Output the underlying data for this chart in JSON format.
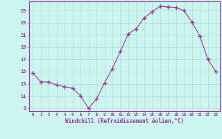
{
  "x": [
    0,
    1,
    2,
    3,
    4,
    5,
    6,
    7,
    8,
    9,
    10,
    11,
    12,
    13,
    14,
    15,
    16,
    17,
    18,
    19,
    20,
    21,
    22,
    23
  ],
  "y": [
    14.8,
    13.3,
    13.3,
    12.8,
    12.5,
    12.3,
    11.0,
    9.0,
    10.5,
    13.1,
    15.5,
    18.3,
    21.2,
    22.0,
    23.8,
    24.8,
    25.7,
    25.6,
    25.5,
    25.0,
    23.1,
    20.8,
    17.0,
    15.0
  ],
  "line_color": "#993399",
  "marker": "+",
  "marker_size": 4,
  "bg_color": "#ccf5f0",
  "grid_color": "#aaddcc",
  "xlabel": "Windchill (Refroidissement éolien,°C)",
  "xlabel_color": "#993399",
  "tick_color": "#993399",
  "ylabel_ticks": [
    9,
    11,
    13,
    15,
    17,
    19,
    21,
    23,
    25
  ],
  "xtick_labels": [
    "0",
    "1",
    "2",
    "3",
    "4",
    "5",
    "6",
    "7",
    "8",
    "9",
    "10",
    "11",
    "12",
    "13",
    "14",
    "15",
    "16",
    "17",
    "18",
    "19",
    "20",
    "21",
    "22",
    "23"
  ],
  "xlim": [
    -0.5,
    23.5
  ],
  "ylim": [
    8.5,
    26.5
  ],
  "spine_color": "#993399"
}
